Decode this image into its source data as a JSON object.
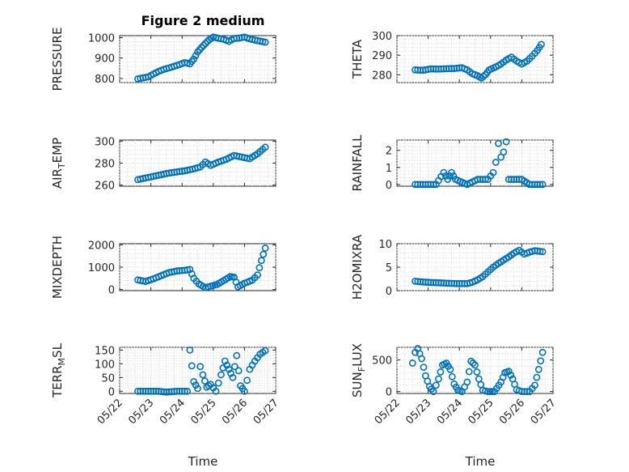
{
  "figure_title": "Figure 2 medium",
  "colors": {
    "marker": "#0072BD",
    "axis": "#262626",
    "grid": "#d9d9d9"
  },
  "time_ticks": [
    "05/22",
    "05/23",
    "05/24",
    "05/25",
    "05/26",
    "05/27"
  ],
  "chart_data": [
    {
      "type": "scatter",
      "ylabel": "PRESSURE",
      "ylim": [
        780,
        1010
      ],
      "yticks": [
        "800",
        "900",
        "1000"
      ],
      "grid": true,
      "xlim": [
        "05/22",
        "05/27"
      ],
      "points": [
        [
          "05/22 14:00",
          798
        ],
        [
          "05/22 18:00",
          803
        ],
        [
          "05/22 22:00",
          808
        ],
        [
          "05/23 02:00",
          822
        ],
        [
          "05/23 06:00",
          835
        ],
        [
          "05/23 10:00",
          845
        ],
        [
          "05/23 14:00",
          852
        ],
        [
          "05/23 18:00",
          860
        ],
        [
          "05/23 22:00",
          868
        ],
        [
          "05/24 02:00",
          878
        ],
        [
          "05/24 06:00",
          872
        ],
        [
          "05/24 09:00",
          895
        ],
        [
          "05/24 12:00",
          930
        ],
        [
          "05/24 15:00",
          952
        ],
        [
          "05/24 18:00",
          972
        ],
        [
          "05/24 21:00",
          990
        ],
        [
          "05/25 00:00",
          1003
        ],
        [
          "05/25 04:00",
          997
        ],
        [
          "05/25 08:00",
          992
        ],
        [
          "05/25 12:00",
          982
        ],
        [
          "05/25 16:00",
          996
        ],
        [
          "05/25 20:00",
          998
        ],
        [
          "05/26 00:00",
          1003
        ],
        [
          "05/26 04:00",
          994
        ],
        [
          "05/26 08:00",
          988
        ],
        [
          "05/26 12:00",
          983
        ],
        [
          "05/26 16:00",
          978
        ]
      ]
    },
    {
      "type": "scatter",
      "ylabel": "THETA",
      "ylim": [
        276,
        300
      ],
      "yticks": [
        "280",
        "290",
        "300"
      ],
      "grid": true,
      "xlim": [
        "05/22",
        "05/27"
      ],
      "points": [
        [
          "05/22 14:00",
          282.5
        ],
        [
          "05/22 20:00",
          282.3
        ],
        [
          "05/23 02:00",
          283
        ],
        [
          "05/23 08:00",
          282.9
        ],
        [
          "05/23 14:00",
          283.1
        ],
        [
          "05/23 20:00",
          283.2
        ],
        [
          "05/24 02:00",
          283.6
        ],
        [
          "05/24 06:00",
          282.5
        ],
        [
          "05/24 10:00",
          280.5
        ],
        [
          "05/24 14:00",
          279.5
        ],
        [
          "05/24 17:00",
          278.3
        ],
        [
          "05/24 20:00",
          280
        ],
        [
          "05/24 23:00",
          282.5
        ],
        [
          "05/25 04:00",
          284
        ],
        [
          "05/25 08:00",
          285.5
        ],
        [
          "05/25 12:00",
          287.5
        ],
        [
          "05/25 16:00",
          289
        ],
        [
          "05/25 20:00",
          287
        ],
        [
          "05/26 00:00",
          285.5
        ],
        [
          "05/26 04:00",
          287
        ],
        [
          "05/26 08:00",
          289.5
        ],
        [
          "05/26 12:00",
          292.5
        ],
        [
          "05/26 15:00",
          295.5
        ]
      ]
    },
    {
      "type": "scatter",
      "ylabel": "AIR_TEMP",
      "ylabel_main": "AIR",
      "ylabel_sub": "T",
      "ylabel_rest": "EMP",
      "ylim": [
        259,
        301
      ],
      "yticks": [
        "260",
        "280",
        "300"
      ],
      "grid": true,
      "xlim": [
        "05/22",
        "05/27"
      ],
      "points": [
        [
          "05/22 14:00",
          265
        ],
        [
          "05/22 20:00",
          266.5
        ],
        [
          "05/23 02:00",
          268
        ],
        [
          "05/23 08:00",
          269.5
        ],
        [
          "05/23 14:00",
          271
        ],
        [
          "05/23 20:00",
          272
        ],
        [
          "05/24 02:00",
          273
        ],
        [
          "05/24 08:00",
          274.5
        ],
        [
          "05/24 14:00",
          276.5
        ],
        [
          "05/24 18:00",
          281
        ],
        [
          "05/24 22:00",
          278
        ],
        [
          "05/25 04:00",
          281
        ],
        [
          "05/25 10:00",
          283.5
        ],
        [
          "05/25 16:00",
          287
        ],
        [
          "05/25 22:00",
          285.5
        ],
        [
          "05/26 04:00",
          284
        ],
        [
          "05/26 10:00",
          288.5
        ],
        [
          "05/26 16:00",
          294.5
        ]
      ]
    },
    {
      "type": "scatter",
      "ylabel": "RAINFALL",
      "ylim": [
        -0.1,
        2.6
      ],
      "yticks": [
        "0",
        "1",
        "2"
      ],
      "grid": true,
      "xlim": [
        "05/22",
        "05/27"
      ],
      "points": [
        [
          "05/22 14:00",
          0
        ],
        [
          "05/22 22:00",
          0
        ],
        [
          "05/23 06:00",
          0
        ],
        [
          "05/23 12:00",
          0.7
        ],
        [
          "05/23 15:00",
          0.3
        ],
        [
          "05/23 18:00",
          0.7
        ],
        [
          "05/23 21:00",
          0.3
        ],
        [
          "05/24 06:00",
          0
        ],
        [
          "05/24 14:00",
          0.3
        ],
        [
          "05/24 22:00",
          0.3
        ],
        [
          "05/25 02:00",
          0.7
        ],
        [
          "05/25 04:00",
          1.3
        ],
        [
          "05/25 06:00",
          2.4
        ],
        [
          "05/25 08:00",
          1.6
        ],
        [
          "05/25 10:00",
          1.9
        ],
        [
          "05/25 12:00",
          2.5
        ],
        [
          "05/25 14:00",
          0.3
        ],
        [
          "05/25 20:00",
          0.3
        ],
        [
          "05/26 00:00",
          0.3
        ],
        [
          "05/26 06:00",
          0
        ],
        [
          "05/26 16:00",
          0
        ]
      ]
    },
    {
      "type": "scatter",
      "ylabel": "MIXDEPTH",
      "ylim": [
        -50,
        2050
      ],
      "yticks": [
        "0",
        "1000",
        "2000"
      ],
      "grid": true,
      "xlim": [
        "05/22",
        "05/27"
      ],
      "points": [
        [
          "05/22 14:00",
          430
        ],
        [
          "05/22 20:00",
          360
        ],
        [
          "05/23 02:00",
          480
        ],
        [
          "05/23 08:00",
          620
        ],
        [
          "05/23 14:00",
          760
        ],
        [
          "05/23 20:00",
          830
        ],
        [
          "05/24 02:00",
          860
        ],
        [
          "05/24 06:00",
          900
        ],
        [
          "05/24 09:00",
          500
        ],
        [
          "05/24 13:00",
          250
        ],
        [
          "05/24 18:00",
          80
        ],
        [
          "05/24 22:00",
          150
        ],
        [
          "05/25 03:00",
          230
        ],
        [
          "05/25 08:00",
          400
        ],
        [
          "05/25 13:00",
          580
        ],
        [
          "05/25 16:00",
          550
        ],
        [
          "05/25 19:00",
          120
        ],
        [
          "05/26 00:00",
          280
        ],
        [
          "05/26 06:00",
          420
        ],
        [
          "05/26 10:00",
          650
        ],
        [
          "05/26 13:00",
          1300
        ],
        [
          "05/26 16:00",
          1850
        ]
      ]
    },
    {
      "type": "scatter",
      "ylabel": "H2OMIXRA",
      "ylim": [
        0,
        10
      ],
      "yticks": [
        "0",
        "5",
        "10"
      ],
      "grid": true,
      "xlim": [
        "05/22",
        "05/27"
      ],
      "points": [
        [
          "05/22 14:00",
          2
        ],
        [
          "05/22 22:00",
          1.8
        ],
        [
          "05/23 06:00",
          1.7
        ],
        [
          "05/23 14:00",
          1.6
        ],
        [
          "05/23 22:00",
          1.5
        ],
        [
          "05/24 06:00",
          1.5
        ],
        [
          "05/24 10:00",
          1.8
        ],
        [
          "05/24 14:00",
          2.3
        ],
        [
          "05/24 18:00",
          3
        ],
        [
          "05/24 22:00",
          4
        ],
        [
          "05/25 02:00",
          5
        ],
        [
          "05/25 06:00",
          5.8
        ],
        [
          "05/25 10:00",
          6.5
        ],
        [
          "05/25 14:00",
          7.2
        ],
        [
          "05/25 18:00",
          8
        ],
        [
          "05/25 22:00",
          8.6
        ],
        [
          "05/26 02:00",
          7.8
        ],
        [
          "05/26 06:00",
          8.2
        ],
        [
          "05/26 10:00",
          8.5
        ],
        [
          "05/26 16:00",
          8.3
        ]
      ]
    },
    {
      "type": "scatter",
      "ylabel": "TERR_MSL",
      "ylabel_main": "TERR",
      "ylabel_sub": "M",
      "ylabel_rest": "SL",
      "ylim": [
        -8,
        160
      ],
      "yticks": [
        "0",
        "50",
        "100",
        "150"
      ],
      "grid": true,
      "xlim": [
        "05/22",
        "05/27"
      ],
      "points": [
        [
          "05/22 14:00",
          0
        ],
        [
          "05/22 22:00",
          0
        ],
        [
          "05/23 06:00",
          0
        ],
        [
          "05/23 12:00",
          -3
        ],
        [
          "05/23 20:00",
          0
        ],
        [
          "05/24 04:00",
          0
        ],
        [
          "05/24 06:00",
          150
        ],
        [
          "05/24 09:00",
          35
        ],
        [
          "05/24 12:00",
          10
        ],
        [
          "05/24 14:00",
          90
        ],
        [
          "05/24 16:00",
          60
        ],
        [
          "05/24 19:00",
          15
        ],
        [
          "05/24 22:00",
          25
        ],
        [
          "05/25 02:00",
          0
        ],
        [
          "05/25 06:00",
          60
        ],
        [
          "05/25 09:00",
          110
        ],
        [
          "05/25 12:00",
          80
        ],
        [
          "05/25 15:00",
          50
        ],
        [
          "05/25 18:00",
          130
        ],
        [
          "05/25 21:00",
          20
        ],
        [
          "05/26 00:00",
          0
        ],
        [
          "05/26 04:00",
          80
        ],
        [
          "05/26 08:00",
          110
        ],
        [
          "05/26 12:00",
          135
        ],
        [
          "05/26 16:00",
          148
        ]
      ]
    },
    {
      "type": "scatter",
      "ylabel": "SUN_FLUX",
      "ylabel_main": "SUN",
      "ylabel_sub": "F",
      "ylabel_rest": "LUX",
      "ylim": [
        -30,
        700
      ],
      "yticks": [
        "0",
        "500"
      ],
      "grid": true,
      "xlim": [
        "05/22",
        "05/27"
      ],
      "points": [
        [
          "05/22 12:00",
          450
        ],
        [
          "05/22 14:00",
          620
        ],
        [
          "05/22 16:00",
          680
        ],
        [
          "05/22 19:00",
          520
        ],
        [
          "05/22 22:00",
          250
        ],
        [
          "05/23 01:00",
          80
        ],
        [
          "05/23 04:00",
          0
        ],
        [
          "05/23 08:00",
          200
        ],
        [
          "05/23 11:00",
          420
        ],
        [
          "05/23 14:00",
          450
        ],
        [
          "05/23 17:00",
          350
        ],
        [
          "05/23 20:00",
          120
        ],
        [
          "05/23 23:00",
          20
        ],
        [
          "05/24 02:00",
          0
        ],
        [
          "05/24 06:00",
          150
        ],
        [
          "05/24 09:00",
          480
        ],
        [
          "05/24 12:00",
          420
        ],
        [
          "05/24 15:00",
          200
        ],
        [
          "05/24 18:00",
          20
        ],
        [
          "05/24 22:00",
          0
        ],
        [
          "05/25 03:00",
          0
        ],
        [
          "05/25 08:00",
          150
        ],
        [
          "05/25 11:00",
          300
        ],
        [
          "05/25 14:00",
          320
        ],
        [
          "05/25 17:00",
          200
        ],
        [
          "05/25 20:00",
          30
        ],
        [
          "05/26 00:00",
          0
        ],
        [
          "05/26 06:00",
          0
        ],
        [
          "05/26 10:00",
          100
        ],
        [
          "05/26 13:00",
          350
        ],
        [
          "05/26 16:00",
          620
        ]
      ]
    }
  ],
  "x_axis_label_left": "Time",
  "x_axis_label_right": "Time"
}
